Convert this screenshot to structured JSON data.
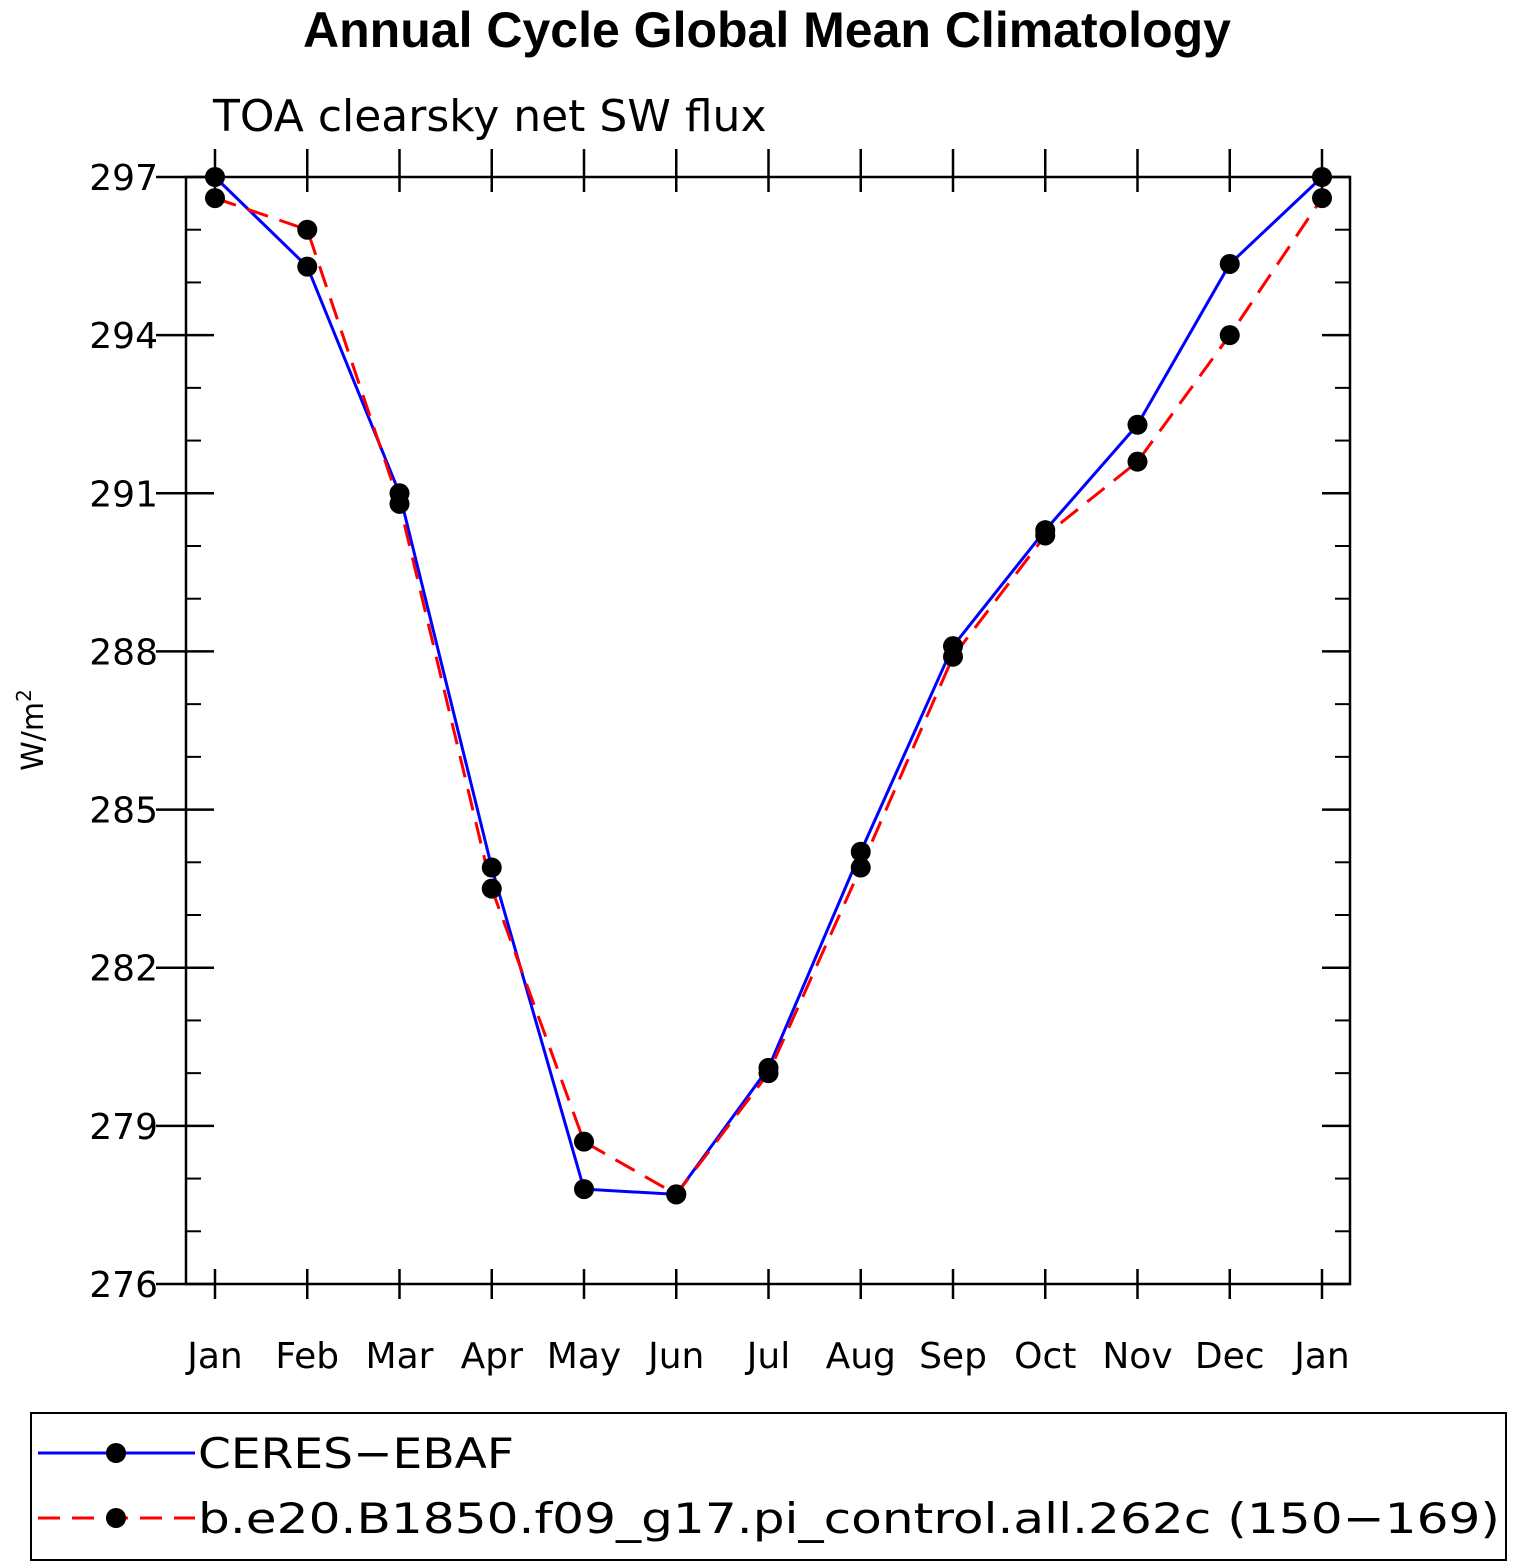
{
  "chart_data": {
    "type": "line",
    "title": "Annual Cycle Global Mean Climatology",
    "subtitle": "TOA clearsky net SW flux",
    "ylabel_base": "W/m",
    "ylabel_sup": "2",
    "categories": [
      "Jan",
      "Feb",
      "Mar",
      "Apr",
      "May",
      "Jun",
      "Jul",
      "Aug",
      "Sep",
      "Oct",
      "Nov",
      "Dec",
      "Jan"
    ],
    "ylim": [
      276,
      297
    ],
    "yticks": [
      "276",
      "279",
      "282",
      "285",
      "288",
      "291",
      "294",
      "297"
    ],
    "series": [
      {
        "name": "CERES−EBAF",
        "color": "#0000ff",
        "dash": "solid",
        "values": [
          297.0,
          295.3,
          291.0,
          283.9,
          277.8,
          277.7,
          280.1,
          284.2,
          288.1,
          290.3,
          292.3,
          295.35,
          297.0
        ]
      },
      {
        "name": "b.e20.B1850.f09_g17.pi_control.all.262c (150−169)",
        "color": "#ff0000",
        "dash": "dashed",
        "values": [
          296.6,
          296.0,
          290.8,
          283.5,
          278.7,
          277.7,
          280.0,
          283.9,
          287.9,
          290.2,
          291.6,
          294.0,
          296.6
        ]
      }
    ]
  }
}
